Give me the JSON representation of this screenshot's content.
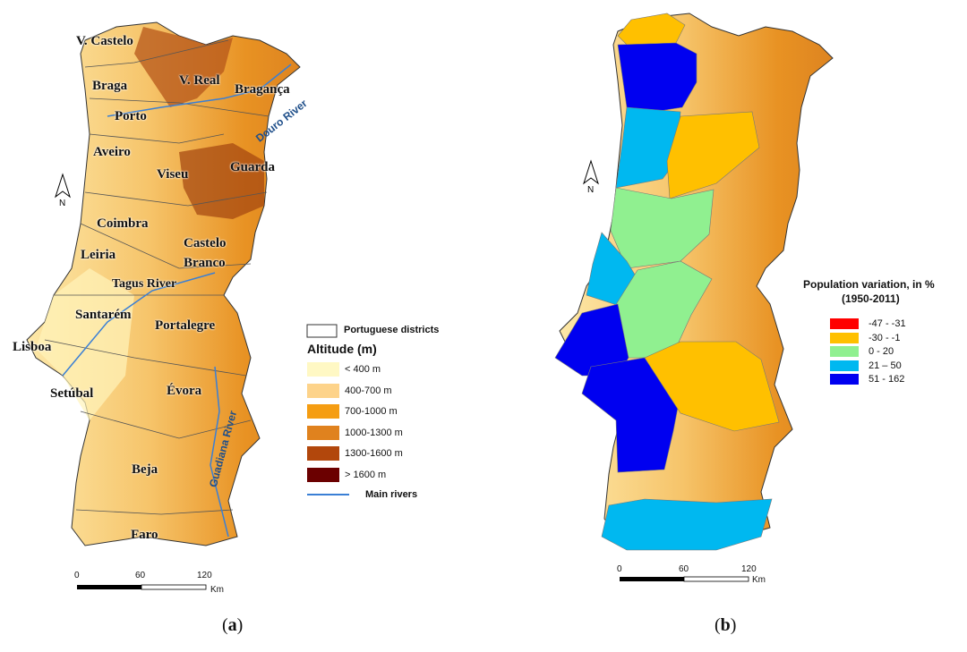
{
  "panel_a": {
    "caption_open": "(",
    "caption_letter": "a",
    "caption_close": ")",
    "districts": [
      "V. Castelo",
      "Braga",
      "V. Real",
      "Bragança",
      "Porto",
      "Aveiro",
      "Viseu",
      "Guarda",
      "Coimbra",
      "Castelo",
      "Branco",
      "Leiria",
      "Santarém",
      "Portalegre",
      "Lisboa",
      "Setúbal",
      "Évora",
      "Beja",
      "Faro"
    ],
    "rivers": [
      "Douro River",
      "Tagus River",
      "Guadiana River"
    ],
    "legend": {
      "districts_label": "Portuguese districts",
      "title": "Altitude (m)",
      "items": [
        {
          "label": "< 400 m",
          "color": "#fff8c4"
        },
        {
          "label": "400-700 m",
          "color": "#fdd38a"
        },
        {
          "label": "700-1000 m",
          "color": "#f59d12"
        },
        {
          "label": "1000-1300 m",
          "color": "#e0821e"
        },
        {
          "label": "1300-1600 m",
          "color": "#b2470c"
        },
        {
          "label": "> 1600 m",
          "color": "#6b0000"
        }
      ],
      "rivers_label": "Main rivers",
      "rivers_color": "#3a7fd5"
    },
    "scale": {
      "ticks": [
        "0",
        "60",
        "120"
      ],
      "unit": "Km"
    },
    "north": "N"
  },
  "panel_b": {
    "caption_open": "(",
    "caption_letter": "b",
    "caption_close": ")",
    "legend": {
      "title_line1": "Population variation, in %",
      "title_line2": "(1950-2011)",
      "items": [
        {
          "label": "-47 - -31",
          "color": "#ff0000"
        },
        {
          "label": "-30 - -1",
          "color": "#ffc000"
        },
        {
          "label": "0 - 20",
          "color": "#90f090"
        },
        {
          "label": "21 – 50",
          "color": "#00b8f0"
        },
        {
          "label": "51 - 162",
          "color": "#0000f0"
        }
      ]
    },
    "scale": {
      "ticks": [
        "0",
        "60",
        "120"
      ],
      "unit": "Km"
    },
    "north": "N"
  }
}
